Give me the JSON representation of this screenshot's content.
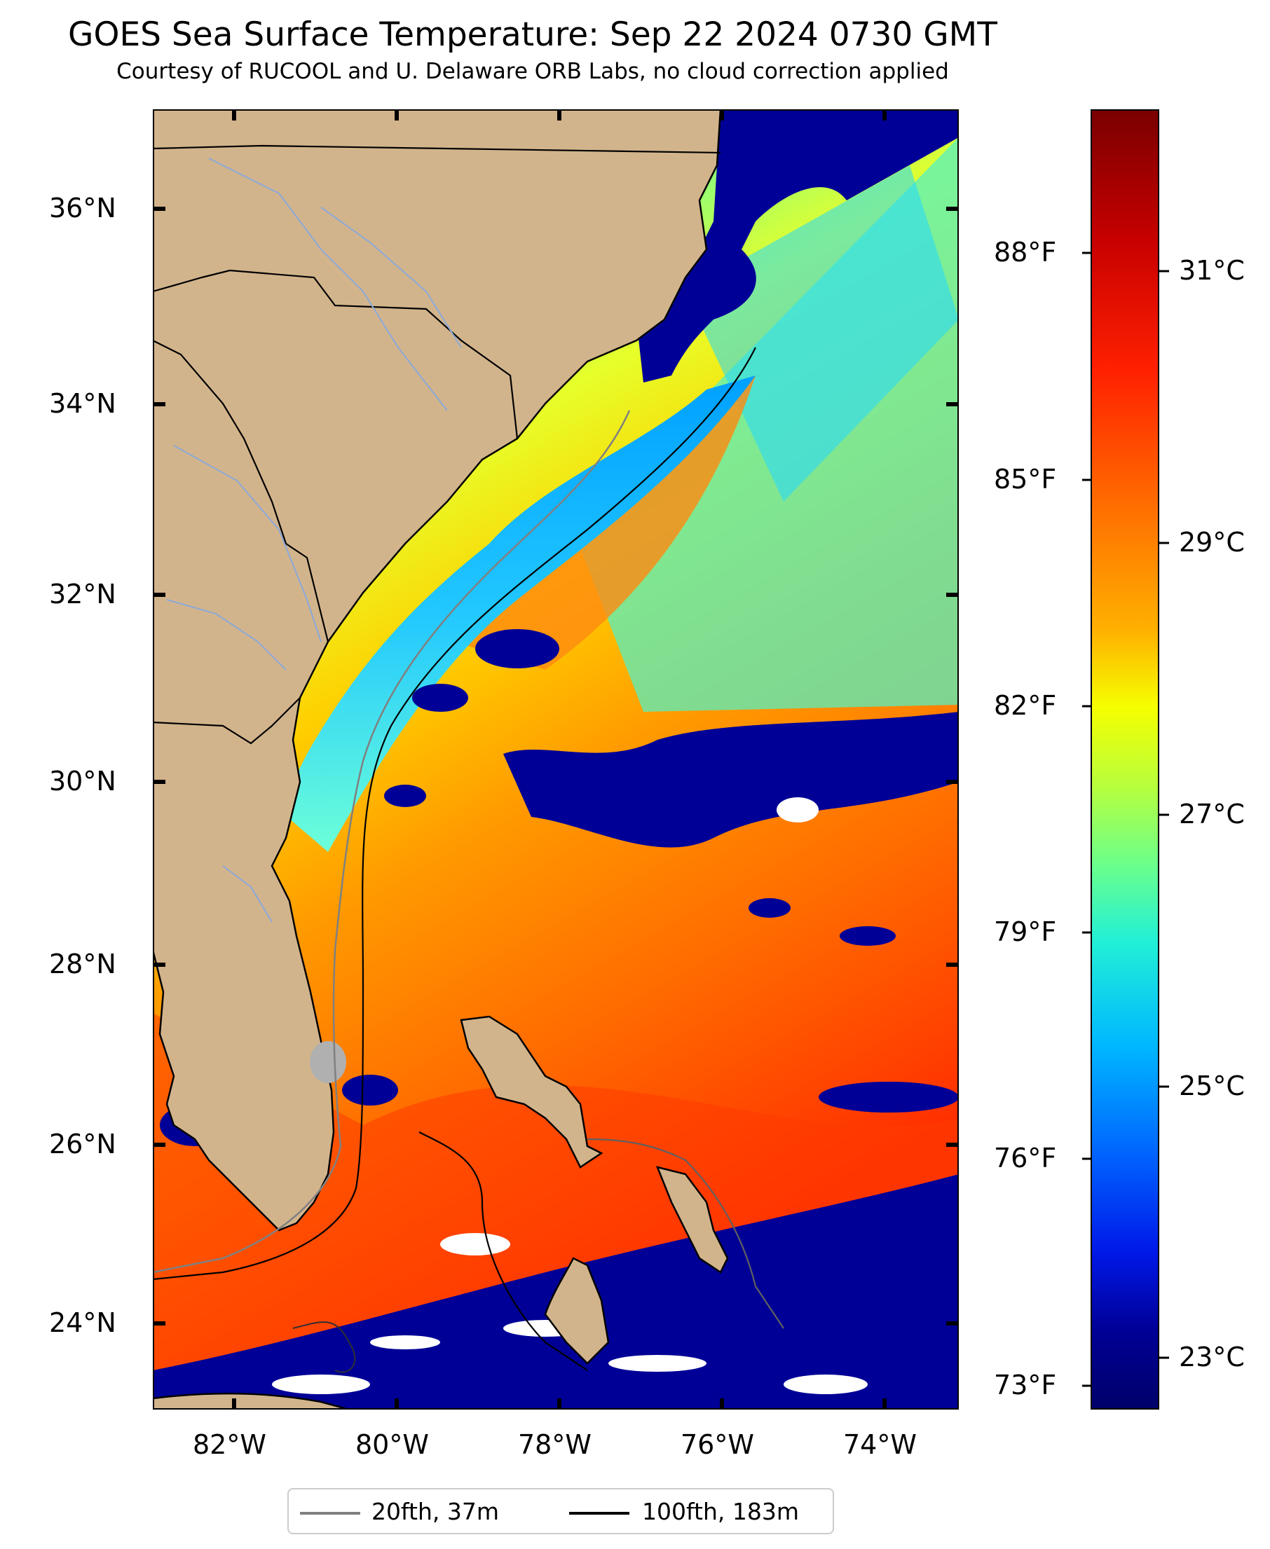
{
  "header": {
    "title": "GOES Sea Surface Temperature: Sep 22 2024 0730 GMT",
    "subtitle": "Courtesy of RUCOOL and U. Delaware ORB Labs, no cloud correction applied"
  },
  "map": {
    "lon_range": [
      -83,
      -73
    ],
    "lat_range": [
      23.2,
      37.0
    ],
    "lat_ticks": [
      "36°N",
      "34°N",
      "32°N",
      "30°N",
      "28°N",
      "26°N",
      "24°N"
    ],
    "lon_ticks": [
      "82°W",
      "80°W",
      "78°W",
      "76°W",
      "74°W"
    ],
    "colors": {
      "land": "#d2b48c",
      "cloud_mask": "#000096",
      "no_data": "#ffffff",
      "warm_water": "#ff8c00",
      "shelf_water": "#22c8ff"
    }
  },
  "colorbar": {
    "fahrenheit_ticks": [
      "88°F",
      "85°F",
      "82°F",
      "79°F",
      "76°F",
      "73°F"
    ],
    "celsius_ticks": [
      "31°C",
      "29°C",
      "27°C",
      "25°C",
      "23°C"
    ],
    "colormap": "jet"
  },
  "legend": {
    "items": [
      {
        "label": "20fth, 37m",
        "color": "#808080"
      },
      {
        "label": "100fth, 183m",
        "color": "#000000"
      }
    ]
  }
}
